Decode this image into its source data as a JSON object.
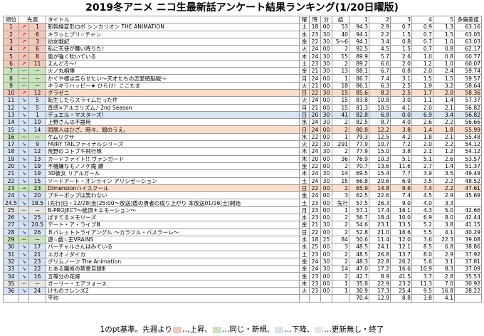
{
  "title": "2019冬アニメ ニコ生最新話アンケート結果ランキング(1/20日曜版)",
  "columns": [
    "順位",
    "先週",
    "タイトル",
    "曜",
    "時",
    "分",
    "話",
    "1",
    "2",
    "3",
    "4",
    "5",
    "多偏差値"
  ],
  "colors": {
    "up": "#f4c8b8",
    "same": "#c9e3bb",
    "down": "#d6e3f2",
    "none": "#e6e6e6",
    "row_highlight_orange": "#f9dcc9",
    "row_highlight_blue": "#d8e4f1"
  },
  "rows": [
    {
      "rank": "1",
      "arrow": "↗",
      "prev": "1",
      "title": "新幹線変形ロボ シンカリオン THE ANIMATION",
      "day": "土",
      "hh": "18",
      "mm": "00",
      "ep": "53",
      "v1": "94.3",
      "v2": "2.9",
      "v3": "0.7",
      "v4": "0.9",
      "v5": "1.3",
      "score": "63.16",
      "move": "up",
      "hl": ""
    },
    {
      "rank": "2",
      "arrow": "↗",
      "prev": "6",
      "title": "キラッとプリ☆チャン",
      "day": "水",
      "hh": "23",
      "mm": "30",
      "ep": "40",
      "v1": "94.1",
      "v2": "2.2",
      "v3": "1.5",
      "v4": "0.7",
      "v5": "1.5",
      "score": "63.05",
      "move": "up",
      "hl": ""
    },
    {
      "rank": "3",
      "arrow": "↗",
      "prev": "3",
      "title": "幼女戦記",
      "day": "金",
      "hh": "22",
      "mm": "30",
      "ep": "5〜6",
      "v1": "94.1",
      "v2": "3.4",
      "v3": "0.8",
      "v4": "0.7",
      "v5": "1.0",
      "score": "63.03",
      "move": "up",
      "hl": ""
    },
    {
      "rank": "4",
      "arrow": "↗",
      "prev": "6",
      "title": "私に天使が舞い降りた！",
      "day": "火",
      "hh": "24",
      "mm": "00",
      "ep": "2",
      "v1": "92.5",
      "v2": "4.5",
      "v3": "1.5",
      "v4": "0.7",
      "v5": "0.8",
      "score": "62.17",
      "move": "up",
      "hl": ""
    },
    {
      "rank": "5",
      "arrow": "↗",
      "prev": "8",
      "title": "風が強く吹いている",
      "day": "木",
      "hh": "24",
      "mm": "30",
      "ep": "15",
      "v1": "89.9",
      "v2": "5.7",
      "v3": "2.6",
      "v4": "1.0",
      "v5": "0.8",
      "score": "60.77",
      "move": "up",
      "hl": ""
    },
    {
      "rank": "6",
      "arrow": "↗",
      "prev": "11",
      "title": "えんどろ〜！",
      "day": "土",
      "hh": "23",
      "mm": "30",
      "ep": "2",
      "v1": "89.2",
      "v2": "6.6",
      "v3": "2.0",
      "v4": "1.2",
      "v5": "1.0",
      "score": "60.07",
      "move": "up",
      "hl": ""
    },
    {
      "rank": "7",
      "arrow": "－",
      "prev": "－",
      "title": "火ノ丸相撲",
      "day": "金",
      "hh": "21",
      "mm": "30",
      "ep": "13",
      "v1": "88.1",
      "v2": "6.7",
      "v3": "0.8",
      "v4": "2.0",
      "v5": "2.4",
      "score": "59.74",
      "move": "same",
      "hl": ""
    },
    {
      "rank": "8",
      "arrow": "－",
      "prev": "－",
      "title": "かぐや様は告らせたい〜天才たちの恋愛頭脳戦〜",
      "day": "月",
      "hh": "24",
      "mm": "00",
      "ep": "1",
      "v1": "86.7",
      "v2": "7.4",
      "v3": "3.1",
      "v4": "1.5",
      "v5": "1.5",
      "score": "59.57",
      "move": "same",
      "hl": ""
    },
    {
      "rank": "9",
      "arrow": "－",
      "prev": "－",
      "title": "キラキラハッピー★ ひらけ！ここたま",
      "day": "火",
      "hh": "21",
      "mm": "00",
      "ep": "18",
      "v1": "86.1",
      "v2": "6.3",
      "v3": "2.5",
      "v4": "1.9",
      "v5": "3.2",
      "score": "58.64",
      "move": "same",
      "hl": ""
    },
    {
      "rank": "10",
      "arrow": "↗",
      "prev": "12",
      "title": "グラゼニ",
      "day": "日",
      "hh": "22",
      "mm": "30",
      "ep": "15",
      "v1": "85.6",
      "v2": "8.2",
      "v3": "2.5",
      "v4": "1.7",
      "v5": "2.0",
      "score": "58.36",
      "move": "up",
      "hl": "or"
    },
    {
      "rank": "11",
      "arrow": "↘",
      "prev": "5",
      "title": "転生したらスライムだった件",
      "day": "火",
      "hh": "24",
      "mm": "00",
      "ep": "15",
      "v1": "83.8",
      "v2": "10.8",
      "v3": "3.0",
      "v4": "1.1",
      "v5": "1.4",
      "score": "57.37",
      "move": "down",
      "hl": ""
    },
    {
      "rank": "12",
      "arrow": "↘",
      "prev": "5",
      "title": "直感×アルゴリズム♪ 2nd Season",
      "day": "月",
      "hh": "21",
      "mm": "00",
      "ep": "15",
      "v1": "81.3",
      "v2": "10.5",
      "v3": "4.1",
      "v4": "2.0",
      "v5": "2.1",
      "score": "56.82",
      "move": "down",
      "hl": ""
    },
    {
      "rank": "13",
      "arrow": "↘",
      "prev": "1",
      "title": "デュエル・マスターズ！",
      "day": "日",
      "hh": "20",
      "mm": "30",
      "ep": "41",
      "v1": "82.8",
      "v2": "6.9",
      "v3": "0.0",
      "v4": "6.9",
      "v5": "3.4",
      "score": "56.82",
      "move": "down",
      "hl": "bl"
    },
    {
      "rank": "14",
      "arrow": "↘",
      "prev": "10",
      "title": "上野さんは不器用",
      "day": "水",
      "hh": "24",
      "mm": "30",
      "ep": "2",
      "v1": "82.5",
      "v2": "8.7",
      "v3": "4.0",
      "v4": "2.6",
      "v5": "2.2",
      "score": "56.66",
      "move": "down",
      "hl": ""
    },
    {
      "rank": "15",
      "arrow": "↘",
      "prev": "14",
      "title": "同居人はひざ、時々、頭のうえ。",
      "day": "日",
      "hh": "24",
      "mm": "00",
      "ep": "2",
      "v1": "80.8",
      "v2": "12.2",
      "v3": "3.8",
      "v4": "1.4",
      "v5": "1.8",
      "score": "55.99",
      "move": "down",
      "hl": "or"
    },
    {
      "rank": "16",
      "arrow": "－",
      "prev": "－",
      "title": "ケムリクサ",
      "day": "水",
      "hh": "22",
      "mm": "00",
      "ep": "1",
      "v1": "79.3",
      "v2": "12.5",
      "v3": "4.2",
      "v4": "1.8",
      "v5": "2.1",
      "score": "55.48",
      "move": "same",
      "hl": ""
    },
    {
      "rank": "17",
      "arrow": "↘",
      "prev": "9",
      "title": "FAIRY TAILファイナルシリーズ",
      "day": "火",
      "hh": "22",
      "mm": "30",
      "ep": "291",
      "v1": "77.9",
      "v2": "10.7",
      "v3": "7.2",
      "v4": "2.0",
      "v5": "2.2",
      "score": "54.12",
      "move": "down",
      "hl": ""
    },
    {
      "rank": "18",
      "arrow": "↘",
      "prev": "12",
      "title": "荒野のコトブキ飛行隊",
      "day": "木",
      "hh": "24",
      "mm": "30",
      "ep": "2",
      "v1": "77.9",
      "v2": "15.0",
      "v3": "3.8",
      "v4": "2.1",
      "v5": "1.2",
      "score": "54.12",
      "move": "down",
      "hl": ""
    },
    {
      "rank": "19",
      "arrow": "↘",
      "prev": "13",
      "title": "カードファイト!! ヴァンガード",
      "day": "木",
      "hh": "20",
      "mm": "00",
      "ep": "36",
      "v1": "76.9",
      "v2": "10.3",
      "v3": "5.1",
      "v4": "5.1",
      "v5": "2.6",
      "score": "53.57",
      "move": "down",
      "hl": ""
    },
    {
      "rank": "20",
      "arrow": "↘",
      "prev": "19",
      "title": "不機嫌なモノノケ庵 續",
      "day": "金",
      "hh": "22",
      "mm": "00",
      "ep": "2",
      "v1": "70.7",
      "v2": "13.6",
      "v3": "11.6",
      "v4": "2.7",
      "v5": "1.4",
      "score": "51.37",
      "move": "down",
      "hl": ""
    },
    {
      "rank": "21",
      "arrow": "↘",
      "prev": "19",
      "title": "3D彼女 リアルガール",
      "day": "木",
      "hh": "24",
      "mm": "30",
      "ep": "14",
      "v1": "69.5",
      "v2": "15.4",
      "v3": "7.7",
      "v4": "3.9",
      "v5": "3.5",
      "score": "49.49",
      "move": "down",
      "hl": ""
    },
    {
      "rank": "22",
      "arrow": "↘",
      "prev": "15",
      "title": "ソードアート・オンライン アリシゼーション",
      "day": "土",
      "hh": "24",
      "mm": "30",
      "ep": "15",
      "v1": "66.8",
      "v2": "20.6",
      "v3": "6.9",
      "v4": "3.5",
      "v5": "2.2",
      "score": "48.52",
      "move": "down",
      "hl": ""
    },
    {
      "rank": "23",
      "arrow": "→",
      "prev": "23",
      "title": "Dimensionハイスクール",
      "day": "日",
      "hh": "22",
      "mm": "00",
      "ep": "2",
      "v1": "65.9",
      "v2": "14.8",
      "v3": "9.6",
      "v4": "7.4",
      "v5": "2.2",
      "score": "47.61",
      "move": "same",
      "hl": "or"
    },
    {
      "rank": "24",
      "arrow": "↘",
      "prev": "20",
      "title": "ブギーポップは笑わない",
      "day": "金",
      "hh": "24",
      "mm": "00",
      "ep": "3",
      "v1": "62.5",
      "v2": "22.6",
      "v3": "7.4",
      "v4": "4.5",
      "v5": "2.9",
      "score": "45.69",
      "move": "down",
      "hl": ""
    },
    {
      "rank": "24.5",
      "arrow": "↘",
      "prev": "18.5",
      "title": "(先行)日・12/28(金)25:00〜放送)盾の勇者の成り上がり 本放送01/26(土)開始",
      "day": "土",
      "hh": "23",
      "mm": "00",
      "ep": "先行",
      "v1": "57.5",
      "v2": "26.3",
      "v3": "9.0",
      "v4": "4.0",
      "v5": "3.3",
      "score": "",
      "move": "down",
      "hl": "",
      "overflow": true
    },
    {
      "rank": "25",
      "arrow": "－",
      "prev": "－",
      "title": "B-PROJECT〜絶頂＊エモーション〜",
      "day": "月",
      "hh": "23",
      "mm": "00",
      "ep": "1",
      "v1": "57.1",
      "v2": "17.4",
      "v3": "16.1",
      "v4": "4.3",
      "v5": "5.0",
      "score": "42.66",
      "move": "none",
      "hl": ""
    },
    {
      "rank": "26",
      "arrow": "↘",
      "prev": "25",
      "title": "ぱすてるメモリーズ",
      "day": "水",
      "hh": "23",
      "mm": "00",
      "ep": "2",
      "v1": "56.7",
      "v2": "18.4",
      "v3": "10.0",
      "v4": "6.9",
      "v5": "8.0",
      "score": "42.44",
      "move": "down",
      "hl": ""
    },
    {
      "rank": "27",
      "arrow": "↘",
      "prev": "20.5",
      "title": "デート・ア・ライブⅢ",
      "day": "金",
      "hh": "21",
      "mm": "30",
      "ep": "2",
      "v1": "54.6",
      "v2": "23.1",
      "v3": "13.5",
      "v4": "5.2",
      "v5": "3.8",
      "score": "41.15",
      "move": "down",
      "hl": ""
    },
    {
      "rank": "28",
      "arrow": "↘",
      "prev": "26",
      "title": "Ｂバレットトライアングル 〜カラフル・バスラーレ〜",
      "day": "日",
      "hh": "22",
      "mm": "00",
      "ep": "2",
      "v1": "52.8",
      "v2": "21.0",
      "v3": "16.6",
      "v4": "5.5",
      "v5": "4.1",
      "score": "40.29",
      "move": "down",
      "hl": ""
    },
    {
      "rank": "29",
      "arrow": "－",
      "prev": "－",
      "title": "遊☆戯☆王VRAINS",
      "day": "水",
      "hh": "18",
      "mm": "25",
      "ep": "84",
      "v1": "50.6",
      "v2": "11.4",
      "v3": "12.0",
      "v4": "3.6",
      "v5": "22.3",
      "score": "39.08",
      "move": "same",
      "hl": ""
    },
    {
      "rank": "30",
      "arrow": "↘",
      "prev": "17",
      "title": "パーチャルさんはみている",
      "day": "水",
      "hh": "25",
      "mm": "00",
      "ep": "3",
      "v1": "48.5",
      "v2": "24.1",
      "v3": "12.1",
      "v4": "8.5",
      "v5": "6.8",
      "score": "38.86",
      "move": "down",
      "hl": ""
    },
    {
      "rank": "31",
      "arrow": "↘",
      "prev": "21",
      "title": "エガオノダイカ",
      "day": "土",
      "hh": "23",
      "mm": "00",
      "ep": "2",
      "v1": "48.5",
      "v2": "26.8",
      "v3": "13.7",
      "v4": "8.0",
      "v5": "2.9",
      "score": "37.92",
      "move": "down",
      "hl": ""
    },
    {
      "rank": "32",
      "arrow": "↘",
      "prev": "23",
      "title": "グリムノーツ The Animation",
      "day": "金",
      "hh": "24",
      "mm": "30",
      "ep": "2",
      "v1": "48.3",
      "v2": "22.8",
      "v3": "20.2",
      "v4": "5.6",
      "v5": "3.1",
      "score": "37.81",
      "move": "down",
      "hl": ""
    },
    {
      "rank": "33",
      "arrow": "↘",
      "prev": "22",
      "title": "とある魔術の禁書目録Ⅲ",
      "day": "金",
      "hh": "24",
      "mm": "30",
      "ep": "14",
      "v1": "47.0",
      "v2": "17.2",
      "v3": "16.6",
      "v4": "10.9",
      "v5": "8.3",
      "score": "37.09",
      "move": "down",
      "hl": ""
    },
    {
      "rank": "34",
      "arrow": "↘",
      "prev": "16",
      "title": "五等分の花嫁",
      "day": "金",
      "hh": "23",
      "mm": "00",
      "ep": "2",
      "v1": "42.7",
      "v2": "8.9",
      "v3": "41.5",
      "v4": "3.7",
      "v5": "2.8",
      "score": "35.53",
      "move": "down",
      "hl": ""
    },
    {
      "rank": "35",
      "arrow": "－",
      "prev": "－",
      "title": "ガーリー・エアフォース",
      "day": "木",
      "hh": "23",
      "mm": "00",
      "ep": "1",
      "v1": "35.8",
      "v2": "22.9",
      "v3": "23.2",
      "v4": "11.3",
      "v5": "7.0",
      "score": "30.92",
      "move": "none",
      "hl": ""
    },
    {
      "rank": "36",
      "arrow": "↘",
      "prev": "24",
      "title": "けものフレンズ2",
      "day": "火",
      "hh": "23",
      "mm": "00",
      "ep": "1",
      "v1": "30.9",
      "v2": "17.3",
      "v3": "25.4",
      "v4": "9.5",
      "v5": "16.8",
      "score": "28.22",
      "move": "down",
      "hl": ""
    }
  ],
  "average": {
    "label": "平均",
    "v1": "70.4",
    "v2": "12.9",
    "v3": "8.8",
    "v4": "3.8",
    "v5": "4.1"
  },
  "legend": {
    "base": "1のpt基準。先週より",
    "up": "…上昇、",
    "same": "…同じ・新規、",
    "down": "…下降、",
    "none": "…更新無し・終了"
  }
}
